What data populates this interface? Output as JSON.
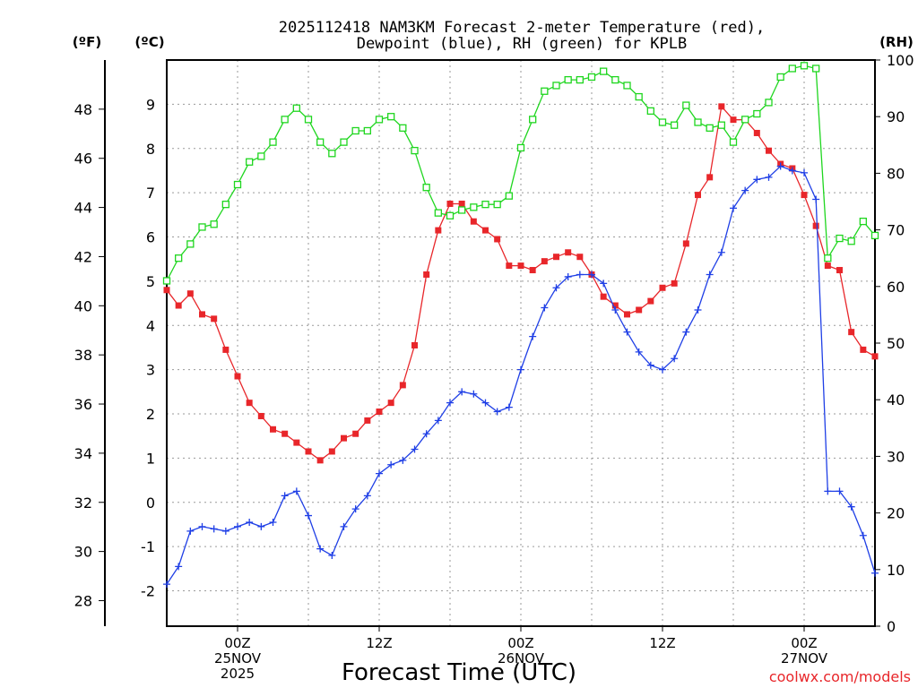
{
  "chart_data": {
    "type": "line",
    "title_line1": "2025112418 NAM3KM Forecast 2-meter Temperature (red),",
    "title_line2": "Dewpoint (blue), RH (green) for KPLB",
    "xlabel": "Forecast Time (UTC)",
    "credit": "coolwx.com/models",
    "units": {
      "left_f": "(ºF)",
      "left_c": "(ºC)",
      "right": "(RH)"
    },
    "x_hours_start": -6,
    "x_hours_end": 54,
    "celsius_axis": {
      "min": -2.8,
      "max": 10.0,
      "ticks": [
        -2,
        -1,
        0,
        1,
        2,
        3,
        4,
        5,
        6,
        7,
        8,
        9
      ]
    },
    "fahrenheit_axis": {
      "ticks": [
        28,
        30,
        32,
        34,
        36,
        38,
        40,
        42,
        44,
        46,
        48
      ]
    },
    "rh_axis": {
      "min": 0,
      "max": 100,
      "ticks": [
        0,
        10,
        20,
        30,
        40,
        50,
        60,
        70,
        80,
        90,
        100
      ]
    },
    "x_ticks": [
      {
        "hour": 0,
        "lines": [
          "00Z",
          "25NOV",
          "2025"
        ]
      },
      {
        "hour": 12,
        "lines": [
          "12Z"
        ]
      },
      {
        "hour": 24,
        "lines": [
          "00Z",
          "26NOV"
        ]
      },
      {
        "hour": 36,
        "lines": [
          "12Z"
        ]
      },
      {
        "hour": 48,
        "lines": [
          "00Z",
          "27NOV"
        ]
      }
    ],
    "series": [
      {
        "name": "Temperature",
        "unit": "C",
        "color": "#e8262a",
        "marker": "filled-square",
        "x": [
          -6,
          -5,
          -4,
          -3,
          -2,
          -1,
          0,
          1,
          2,
          3,
          4,
          5,
          6,
          7,
          8,
          9,
          10,
          11,
          12,
          13,
          14,
          15,
          16,
          17,
          18,
          19,
          20,
          21,
          22,
          23,
          24,
          25,
          26,
          27,
          28,
          29,
          30,
          31,
          32,
          33,
          34,
          35,
          36,
          37,
          38,
          39,
          40,
          41,
          42,
          43,
          44,
          45,
          46,
          47,
          48,
          49,
          50,
          51,
          52,
          53,
          54
        ],
        "values": [
          4.8,
          4.45,
          4.72,
          4.25,
          4.15,
          3.45,
          2.85,
          2.25,
          1.95,
          1.65,
          1.55,
          1.35,
          1.15,
          0.95,
          1.15,
          1.45,
          1.55,
          1.85,
          2.05,
          2.25,
          2.65,
          3.55,
          5.15,
          6.15,
          6.75,
          6.75,
          6.35,
          6.15,
          5.95,
          5.35,
          5.35,
          5.25,
          5.45,
          5.55,
          5.65,
          5.55,
          5.15,
          4.65,
          4.45,
          4.25,
          4.35,
          4.55,
          4.85,
          4.95,
          5.85,
          6.95,
          7.35,
          8.95,
          8.65,
          8.65,
          8.35,
          7.95,
          7.65,
          7.55,
          6.95,
          6.25,
          5.35,
          5.25,
          3.85,
          3.45,
          3.3
        ]
      },
      {
        "name": "Dewpoint",
        "unit": "C",
        "color": "#1f3fe6",
        "marker": "plus",
        "x": [
          -6,
          -5,
          -4,
          -3,
          -2,
          -1,
          0,
          1,
          2,
          3,
          4,
          5,
          6,
          7,
          8,
          9,
          10,
          11,
          12,
          13,
          14,
          15,
          16,
          17,
          18,
          19,
          20,
          21,
          22,
          23,
          24,
          25,
          26,
          27,
          28,
          29,
          30,
          31,
          32,
          33,
          34,
          35,
          36,
          37,
          38,
          39,
          40,
          41,
          42,
          43,
          44,
          45,
          46,
          47,
          48,
          49,
          50,
          51,
          52,
          53,
          54
        ],
        "values": [
          -1.85,
          -1.45,
          -0.65,
          -0.55,
          -0.6,
          -0.65,
          -0.55,
          -0.45,
          -0.55,
          -0.45,
          0.15,
          0.25,
          -0.3,
          -1.05,
          -1.2,
          -0.55,
          -0.15,
          0.15,
          0.65,
          0.85,
          0.95,
          1.2,
          1.55,
          1.85,
          2.25,
          2.5,
          2.45,
          2.25,
          2.05,
          2.15,
          3.0,
          3.75,
          4.4,
          4.85,
          5.1,
          5.15,
          5.15,
          4.95,
          4.35,
          3.85,
          3.4,
          3.1,
          3.0,
          3.25,
          3.85,
          4.35,
          5.15,
          5.65,
          6.65,
          7.05,
          7.3,
          7.35,
          7.6,
          7.5,
          7.45,
          6.85,
          0.25,
          0.25,
          -0.1,
          -0.75,
          -1.6
        ]
      },
      {
        "name": "RH",
        "unit": "%",
        "color": "#1fd61f",
        "marker": "open-square",
        "x": [
          -6,
          -5,
          -4,
          -3,
          -2,
          -1,
          0,
          1,
          2,
          3,
          4,
          5,
          6,
          7,
          8,
          9,
          10,
          11,
          12,
          13,
          14,
          15,
          16,
          17,
          18,
          19,
          20,
          21,
          22,
          23,
          24,
          25,
          26,
          27,
          28,
          29,
          30,
          31,
          32,
          33,
          34,
          35,
          36,
          37,
          38,
          39,
          40,
          41,
          42,
          43,
          44,
          45,
          46,
          47,
          48,
          49,
          50,
          51,
          52,
          53,
          54
        ],
        "values": [
          61,
          65,
          67.5,
          70.5,
          71,
          74.5,
          78,
          82,
          83,
          85.5,
          89.5,
          91.5,
          89.5,
          85.5,
          83.5,
          85.5,
          87.5,
          87.5,
          89.5,
          90,
          88,
          84,
          77.5,
          73,
          72.5,
          73.5,
          74,
          74.5,
          74.5,
          76,
          84.5,
          89.5,
          94.5,
          95.5,
          96.5,
          96.5,
          97,
          98,
          96.5,
          95.5,
          93.5,
          91,
          89,
          88.5,
          92,
          89,
          88,
          88.5,
          85.5,
          89.5,
          90.5,
          92.5,
          97,
          98.5,
          99,
          98.5,
          65,
          68.5,
          68,
          71.5,
          69
        ]
      }
    ]
  }
}
